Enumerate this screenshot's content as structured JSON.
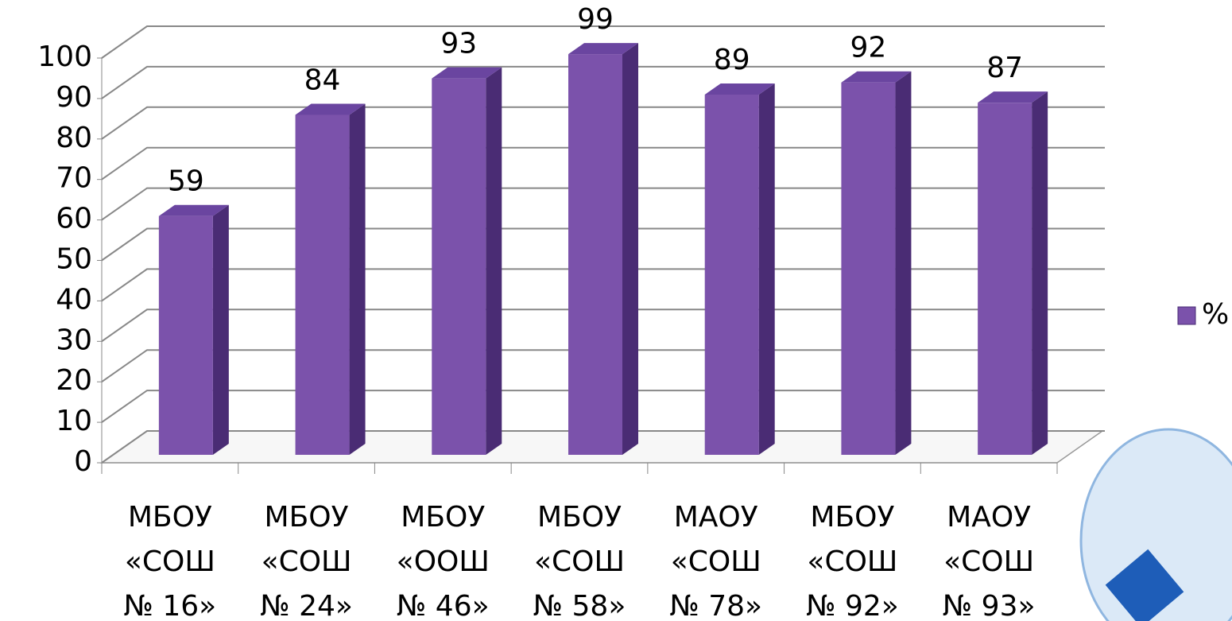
{
  "chart_data": {
    "type": "bar3d",
    "categories": [
      [
        "МБОУ",
        "«СОШ",
        "№ 16»"
      ],
      [
        "МБОУ",
        "«СОШ",
        "№ 24»"
      ],
      [
        "МБОУ",
        "«ООШ",
        "№ 46»"
      ],
      [
        "МБОУ",
        "«СОШ",
        "№ 58»"
      ],
      [
        "МАОУ",
        "«СОШ",
        "№ 78»"
      ],
      [
        "МБОУ",
        "«СОШ",
        "№ 92»"
      ],
      [
        "МАОУ",
        "«СОШ",
        "№ 93»"
      ]
    ],
    "series": [
      {
        "name": "%",
        "color": "#7b52ab",
        "values": [
          59,
          84,
          93,
          99,
          89,
          92,
          87
        ]
      }
    ],
    "ylim": [
      0,
      100
    ],
    "yticks": [
      0,
      10,
      20,
      30,
      40,
      50,
      60,
      70,
      80,
      90,
      100
    ],
    "grid": true,
    "legend": "right"
  }
}
